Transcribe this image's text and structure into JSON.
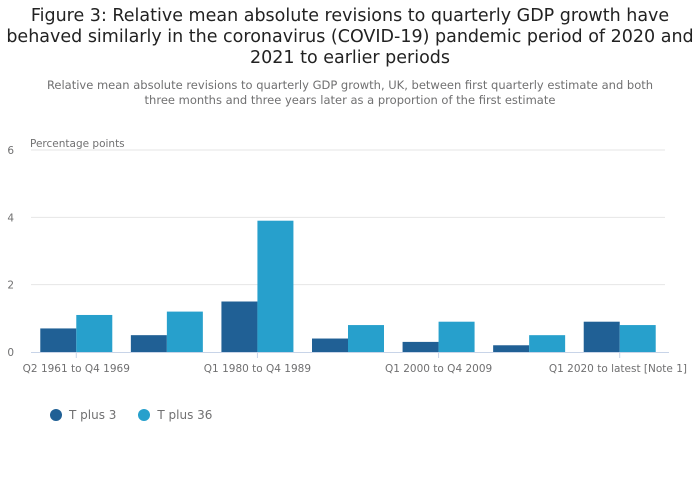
{
  "chart_data": {
    "type": "bar",
    "title": "Figure 3: Relative mean absolute revisions to quarterly GDP growth have behaved similarly in the coronavirus (COVID-19) pandemic period of 2020 and 2021 to earlier periods",
    "subtitle": "Relative mean absolute revisions to quarterly GDP growth, UK, between first quarterly estimate and both three months and three years later as a proportion of the first estimate",
    "ylabel": "Percentage points",
    "xlabel": "",
    "ylim": [
      0,
      6
    ],
    "yticks": [
      0,
      2,
      4,
      6
    ],
    "grid": true,
    "legend_position": "bottom-left",
    "categories": [
      "Q2 1961 to Q4 1969",
      "",
      "Q1 1980 to Q4 1989",
      "",
      "Q1 2000 to Q4 2009",
      "",
      "Q1 2020 to latest [Note 1]"
    ],
    "series": [
      {
        "name": "T plus 3",
        "color": "#206095",
        "values": [
          0.7,
          0.5,
          1.5,
          0.4,
          0.3,
          0.2,
          0.9
        ]
      },
      {
        "name": "T plus 36",
        "color": "#27a0cc",
        "values": [
          1.1,
          1.2,
          3.9,
          0.8,
          0.9,
          0.5,
          0.8
        ]
      }
    ]
  }
}
